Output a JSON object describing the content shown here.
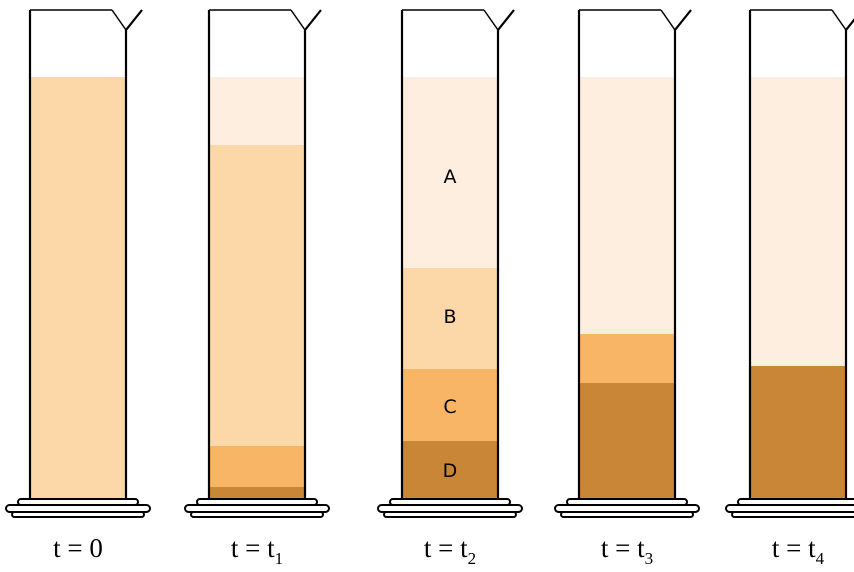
{
  "layer_labels": [
    "A",
    "B",
    "C",
    "D"
  ],
  "time_labels": [
    {
      "text": "t = 0"
    },
    {
      "text": "t = t",
      "sub": "1"
    },
    {
      "text": "t = t",
      "sub": "2"
    },
    {
      "text": "t = t",
      "sub": "3"
    },
    {
      "text": "t = t",
      "sub": "4"
    }
  ]
}
